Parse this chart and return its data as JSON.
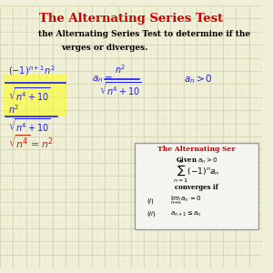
{
  "bg_color": "#f0f0d8",
  "grid_color_major": "#c8c8a0",
  "grid_color_minor": "#e0e0c0",
  "title": "The Alternating Series Test",
  "title_color": "#cc0000",
  "subtitle1": "the Alternating Series Test to determine if the",
  "subtitle2": "verges or diverges.",
  "text_color": "#000000",
  "blue_color": "#1a1aff",
  "red_color": "#cc2200",
  "highlight_yellow": "#ffff00",
  "box_bg": "#f5f5f0",
  "box_border": "#999999"
}
